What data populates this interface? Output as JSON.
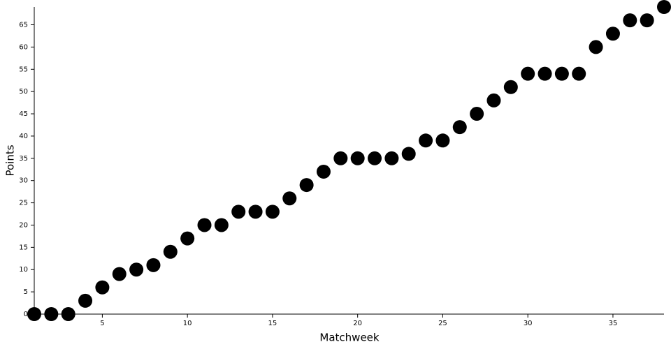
{
  "chart_data": {
    "type": "scatter",
    "x_label": "Matchweek",
    "y_label": "Points",
    "x": [
      1,
      2,
      3,
      4,
      5,
      6,
      7,
      8,
      9,
      10,
      11,
      12,
      13,
      14,
      15,
      16,
      17,
      18,
      19,
      20,
      21,
      22,
      23,
      24,
      25,
      26,
      27,
      28,
      29,
      30,
      31,
      32,
      33,
      34,
      35,
      36,
      37,
      38
    ],
    "values": [
      0,
      0,
      0,
      3,
      6,
      9,
      10,
      11,
      14,
      17,
      20,
      20,
      23,
      23,
      23,
      26,
      29,
      32,
      35,
      35,
      35,
      35,
      36,
      39,
      39,
      42,
      45,
      48,
      51,
      54,
      54,
      54,
      54,
      60,
      63,
      66,
      66,
      69
    ],
    "color": "#000000",
    "xlim": [
      1,
      38
    ],
    "xticks": [
      5,
      10,
      15,
      20,
      25,
      30,
      35
    ],
    "ylim": [
      0,
      69
    ],
    "yticks": [
      0,
      5,
      10,
      15,
      20,
      25,
      30,
      35,
      40,
      45,
      50,
      55,
      60,
      65
    ]
  }
}
